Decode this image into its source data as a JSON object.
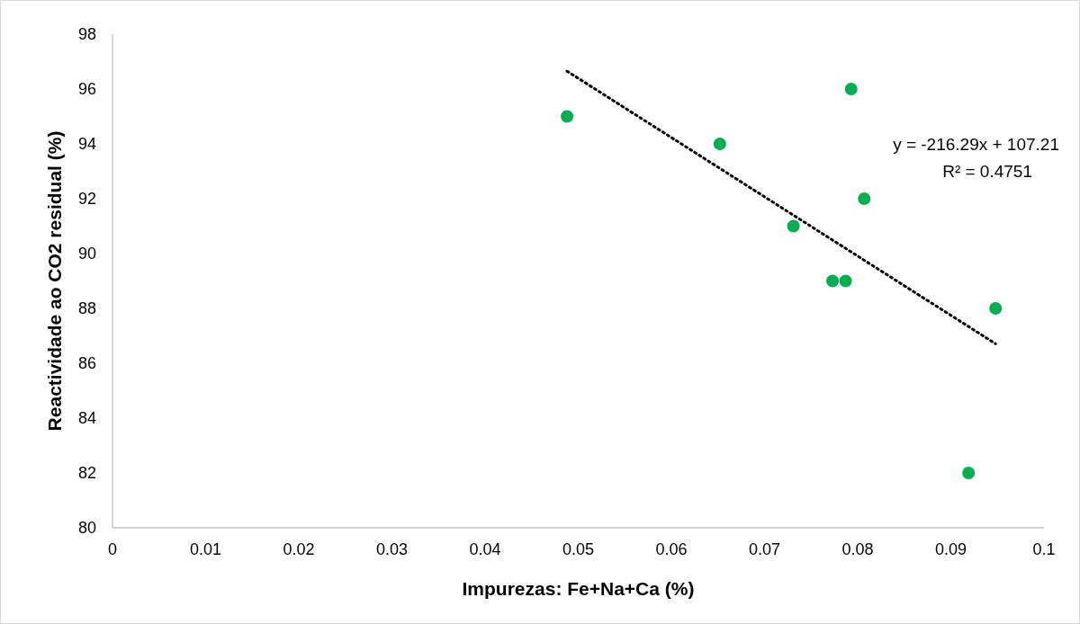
{
  "chart_data": {
    "type": "scatter",
    "xlabel": "Impurezas: Fe+Na+Ca (%)",
    "ylabel": "Reactividade ao CO2 residual (%)",
    "xlim": [
      0,
      0.1
    ],
    "xticks": [
      0,
      0.01,
      0.02,
      0.03,
      0.04,
      0.05,
      0.06,
      0.07,
      0.08,
      0.09,
      0.1
    ],
    "ylim": [
      80,
      98
    ],
    "yticks": [
      80,
      82,
      84,
      86,
      88,
      90,
      92,
      94,
      96,
      98
    ],
    "grid": false,
    "series": [
      {
        "color": "#00b050",
        "marker": "circle",
        "x": [
          0.0488,
          0.0652,
          0.0793,
          0.0807,
          0.0731,
          0.0773,
          0.0787,
          0.0948,
          0.0919
        ],
        "values": [
          95,
          94,
          96,
          92,
          91,
          89,
          89,
          88,
          82
        ]
      },
      {
        "type": "line",
        "color": "#000000",
        "marker": "none",
        "line_style": "dotted",
        "x": [
          0.0488,
          0.0948
        ],
        "values": [
          96.65,
          86.71
        ]
      }
    ],
    "annotations": [
      "y = -216.29x + 107.21",
      "R² = 0.4751"
    ]
  }
}
